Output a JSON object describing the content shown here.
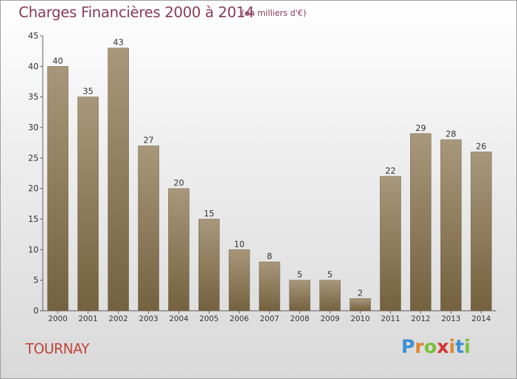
{
  "title": "Charges Financières 2000 à 2014",
  "subtitle": "(en milliers d'€)",
  "place": "TOURNAY",
  "logo": {
    "letters": [
      "P",
      "r",
      "o",
      "x",
      "i",
      "t",
      "i"
    ],
    "colors": [
      "#3a8fd6",
      "#e0872f",
      "#7bbf3a",
      "#d8322f",
      "#e0872f",
      "#3a8fd6",
      "#7bbf3a"
    ]
  },
  "colors": {
    "bar_top": "#a8977a",
    "bar_bottom": "#74613f",
    "title": "#8a3a55",
    "place": "#c0443a"
  },
  "chart_data": {
    "type": "bar",
    "title": "Charges Financières 2000 à 2014",
    "subtitle": "(en milliers d'€)",
    "categories": [
      "2000",
      "2001",
      "2002",
      "2003",
      "2004",
      "2005",
      "2006",
      "2007",
      "2008",
      "2009",
      "2010",
      "2011",
      "2012",
      "2013",
      "2014"
    ],
    "values": [
      40,
      35,
      43,
      27,
      20,
      15,
      10,
      8,
      5,
      5,
      2,
      22,
      29,
      28,
      26
    ],
    "ylim": [
      0,
      45
    ],
    "yticks": [
      0,
      5,
      10,
      15,
      20,
      25,
      30,
      35,
      40,
      45
    ],
    "grid": false,
    "legend": "none"
  }
}
